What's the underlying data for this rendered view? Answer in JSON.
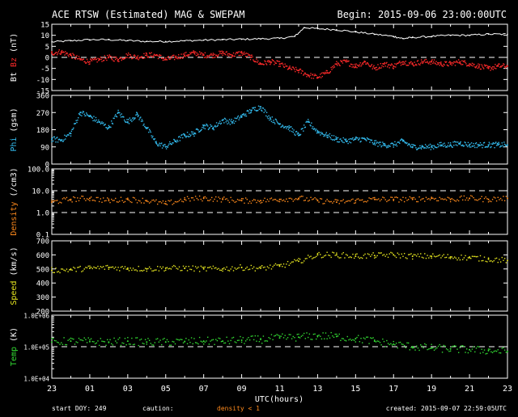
{
  "header": {
    "title": "ACE RTSW (Estimated) MAG & SWEPAM",
    "begin": "Begin: 2015-09-06 23:00:00UTC"
  },
  "footer": {
    "start_doy": "start DOY: 249",
    "caution": "caution:",
    "density_note": "density < 1",
    "created": "created: 2015-09-07 22:59:05UTC"
  },
  "colors": {
    "bt": "#ffffff",
    "bz": "#ff2a2a",
    "phi": "#33bbee",
    "density": "#ff8a1c",
    "speed": "#e8e820",
    "temp": "#33dd33",
    "axis": "#ffffff",
    "background": "#000000"
  },
  "chart_data": {
    "type": "scatter",
    "x_axis": {
      "label": "UTC(hours)",
      "ticks": [
        "23",
        "01",
        "03",
        "05",
        "07",
        "09",
        "11",
        "13",
        "15",
        "17",
        "19",
        "21",
        "23"
      ],
      "range_hours": [
        0,
        24
      ]
    },
    "panels": [
      {
        "id": "mag",
        "ylabel_parts": [
          {
            "text": "Bt",
            "color": "#ffffff"
          },
          {
            "text": " ",
            "color": "#ffffff"
          },
          {
            "text": "Bz",
            "color": "#ff2a2a"
          },
          {
            "text": " (nT)",
            "color": "#ffffff"
          }
        ],
        "ylabel_text": "Bt  Bz  (nT)",
        "scale": "linear",
        "ylim": [
          -15,
          15
        ],
        "yticks": [
          15,
          10,
          5,
          0,
          -5,
          -10,
          -15
        ],
        "dashed": [
          0
        ],
        "series": [
          {
            "name": "Bt",
            "color": "#ffffff",
            "style": "line",
            "points": [
              [
                0,
                7
              ],
              [
                1,
                7.5
              ],
              [
                2,
                8
              ],
              [
                3,
                8
              ],
              [
                4,
                7.6
              ],
              [
                5,
                7.2
              ],
              [
                6,
                7.2
              ],
              [
                7,
                7.5
              ],
              [
                8,
                7.8
              ],
              [
                9,
                8
              ],
              [
                10,
                8.2
              ],
              [
                11,
                8.4
              ],
              [
                12,
                8.6
              ],
              [
                12.8,
                9.5
              ],
              [
                13.3,
                13.5
              ],
              [
                14,
                13
              ],
              [
                15,
                12.5
              ],
              [
                16,
                11.5
              ],
              [
                17,
                10.5
              ],
              [
                18,
                9.5
              ],
              [
                18.5,
                8.5
              ],
              [
                19,
                9
              ],
              [
                20,
                9.5
              ],
              [
                21,
                10
              ],
              [
                22,
                10
              ],
              [
                23,
                10.5
              ],
              [
                24,
                10.5
              ]
            ]
          },
          {
            "name": "Bz",
            "color": "#ff2a2a",
            "style": "dots",
            "points": [
              [
                0,
                2
              ],
              [
                0.5,
                2.5
              ],
              [
                1,
                1
              ],
              [
                1.5,
                -1
              ],
              [
                2,
                -2
              ],
              [
                2.5,
                -1
              ],
              [
                3,
                0
              ],
              [
                3.5,
                -1
              ],
              [
                4,
                1
              ],
              [
                4.5,
                0
              ],
              [
                5,
                1
              ],
              [
                5.5,
                1
              ],
              [
                6,
                -1
              ],
              [
                6.5,
                0
              ],
              [
                7,
                1
              ],
              [
                7.5,
                2
              ],
              [
                8,
                1
              ],
              [
                8.5,
                1
              ],
              [
                9,
                2
              ],
              [
                9.5,
                1
              ],
              [
                10,
                2
              ],
              [
                10.5,
                0
              ],
              [
                11,
                -3
              ],
              [
                11.5,
                -2
              ],
              [
                12,
                -3
              ],
              [
                12.5,
                -5
              ],
              [
                13,
                -6
              ],
              [
                13.5,
                -8
              ],
              [
                14,
                -9
              ],
              [
                14.5,
                -7
              ],
              [
                15,
                -3
              ],
              [
                15.5,
                -2
              ],
              [
                16,
                -4
              ],
              [
                16.5,
                -2
              ],
              [
                17,
                -5
              ],
              [
                17.5,
                -3
              ],
              [
                18,
                -4
              ],
              [
                18.5,
                -2
              ],
              [
                19,
                -3
              ],
              [
                19.5,
                -2
              ],
              [
                20,
                -2
              ],
              [
                20.5,
                -3
              ],
              [
                21,
                -3
              ],
              [
                21.5,
                -2
              ],
              [
                22,
                -3
              ],
              [
                22.5,
                -4
              ],
              [
                23,
                -5
              ],
              [
                23.5,
                -4
              ],
              [
                24,
                -4
              ]
            ]
          }
        ]
      },
      {
        "id": "phi",
        "ylabel_parts": [
          {
            "text": "Phi",
            "color": "#33bbee"
          },
          {
            "text": " (gsm)",
            "color": "#ffffff"
          }
        ],
        "ylabel_text": "Phi (gsm)",
        "scale": "linear",
        "ylim": [
          0,
          360
        ],
        "yticks": [
          360,
          270,
          180,
          90,
          0
        ],
        "dashed": [],
        "series": [
          {
            "name": "Phi",
            "color": "#33bbee",
            "style": "dots",
            "points": [
              [
                0,
                130
              ],
              [
                0.5,
                125
              ],
              [
                1,
                160
              ],
              [
                1.5,
                270
              ],
              [
                2,
                250
              ],
              [
                2.5,
                220
              ],
              [
                3,
                190
              ],
              [
                3.5,
                270
              ],
              [
                4,
                220
              ],
              [
                4.5,
                260
              ],
              [
                5,
                190
              ],
              [
                5.5,
                110
              ],
              [
                6,
                90
              ],
              [
                6.5,
                120
              ],
              [
                7,
                150
              ],
              [
                7.5,
                160
              ],
              [
                8,
                200
              ],
              [
                8.5,
                190
              ],
              [
                9,
                230
              ],
              [
                9.5,
                220
              ],
              [
                10,
                250
              ],
              [
                10.5,
                280
              ],
              [
                11,
                300
              ],
              [
                11.5,
                240
              ],
              [
                12,
                210
              ],
              [
                12.5,
                190
              ],
              [
                13,
                150
              ],
              [
                13.5,
                220
              ],
              [
                14,
                170
              ],
              [
                14.5,
                150
              ],
              [
                15,
                130
              ],
              [
                15.5,
                120
              ],
              [
                16,
                130
              ],
              [
                16.5,
                130
              ],
              [
                17,
                110
              ],
              [
                17.5,
                100
              ],
              [
                18,
                100
              ],
              [
                18.5,
                120
              ],
              [
                19,
                90
              ],
              [
                19.5,
                90
              ],
              [
                20,
                90
              ],
              [
                20.5,
                100
              ],
              [
                21,
                100
              ],
              [
                21.5,
                110
              ],
              [
                22,
                100
              ],
              [
                22.5,
                100
              ],
              [
                23,
                100
              ],
              [
                23.5,
                100
              ],
              [
                24,
                100
              ]
            ]
          }
        ]
      },
      {
        "id": "density",
        "ylabel_parts": [
          {
            "text": "Density",
            "color": "#ff8a1c"
          },
          {
            "text": " (/cm3)",
            "color": "#ffffff"
          }
        ],
        "ylabel_text": "Density (/cm3)",
        "scale": "log",
        "ylim": [
          0.1,
          100
        ],
        "yticks": [
          100.0,
          10.0,
          1.0,
          0.1
        ],
        "ytick_labels": [
          "100.0",
          "10.0",
          "1.0",
          "0.1"
        ],
        "dashed": [
          1,
          10
        ],
        "series": [
          {
            "name": "Density",
            "color": "#ff8a1c",
            "style": "dots",
            "points": [
              [
                0,
                3
              ],
              [
                1,
                4
              ],
              [
                2,
                4.5
              ],
              [
                3,
                3.5
              ],
              [
                4,
                4
              ],
              [
                5,
                3.5
              ],
              [
                6,
                2.5
              ],
              [
                7,
                4
              ],
              [
                8,
                4.5
              ],
              [
                9,
                4
              ],
              [
                10,
                3.5
              ],
              [
                11,
                3.5
              ],
              [
                12,
                4
              ],
              [
                13,
                4.5
              ],
              [
                14,
                3.5
              ],
              [
                15,
                3
              ],
              [
                16,
                3.5
              ],
              [
                17,
                4
              ],
              [
                18,
                4
              ],
              [
                19,
                4
              ],
              [
                20,
                4.5
              ],
              [
                21,
                4
              ],
              [
                22,
                4.5
              ],
              [
                23,
                4
              ],
              [
                24,
                4.5
              ]
            ]
          }
        ]
      },
      {
        "id": "speed",
        "ylabel_parts": [
          {
            "text": "Speed",
            "color": "#e8e820"
          },
          {
            "text": " (km/s)",
            "color": "#ffffff"
          }
        ],
        "ylabel_text": "Speed (km/s)",
        "scale": "linear",
        "ylim": [
          200,
          700
        ],
        "yticks": [
          700,
          600,
          500,
          400,
          300,
          200
        ],
        "dashed": [],
        "series": [
          {
            "name": "Speed",
            "color": "#e8e820",
            "style": "dots",
            "points": [
              [
                0,
                490
              ],
              [
                1,
                495
              ],
              [
                2,
                505
              ],
              [
                3,
                510
              ],
              [
                4,
                505
              ],
              [
                5,
                500
              ],
              [
                6,
                505
              ],
              [
                7,
                505
              ],
              [
                8,
                500
              ],
              [
                9,
                500
              ],
              [
                10,
                510
              ],
              [
                11,
                505
              ],
              [
                12,
                520
              ],
              [
                13,
                555
              ],
              [
                14,
                600
              ],
              [
                15,
                600
              ],
              [
                16,
                590
              ],
              [
                17,
                595
              ],
              [
                18,
                600
              ],
              [
                19,
                590
              ],
              [
                20,
                590
              ],
              [
                21,
                585
              ],
              [
                22,
                580
              ],
              [
                23,
                570
              ],
              [
                24,
                560
              ]
            ]
          }
        ]
      },
      {
        "id": "temp",
        "ylabel_parts": [
          {
            "text": "Temp",
            "color": "#33dd33"
          },
          {
            "text": " (K)",
            "color": "#ffffff"
          }
        ],
        "ylabel_text": "Temp (K)",
        "scale": "log",
        "ylim": [
          10000,
          1000000
        ],
        "yticks": [
          1000000,
          100000,
          10000
        ],
        "ytick_labels": [
          "1.0E+06",
          "1.0E+05",
          "1.0E+04"
        ],
        "dashed": [
          100000
        ],
        "series": [
          {
            "name": "Temp",
            "color": "#33dd33",
            "style": "dots",
            "points": [
              [
                0,
                140000
              ],
              [
                1,
                150000
              ],
              [
                2,
                145000
              ],
              [
                3,
                140000
              ],
              [
                4,
                150000
              ],
              [
                5,
                140000
              ],
              [
                6,
                140000
              ],
              [
                7,
                145000
              ],
              [
                8,
                150000
              ],
              [
                9,
                150000
              ],
              [
                10,
                160000
              ],
              [
                11,
                170000
              ],
              [
                12,
                190000
              ],
              [
                13,
                200000
              ],
              [
                14,
                220000
              ],
              [
                15,
                210000
              ],
              [
                16,
                180000
              ],
              [
                17,
                150000
              ],
              [
                18,
                120000
              ],
              [
                19,
                100000
              ],
              [
                20,
                90000
              ],
              [
                21,
                85000
              ],
              [
                22,
                80000
              ],
              [
                23,
                75000
              ],
              [
                24,
                70000
              ]
            ]
          }
        ]
      }
    ]
  }
}
